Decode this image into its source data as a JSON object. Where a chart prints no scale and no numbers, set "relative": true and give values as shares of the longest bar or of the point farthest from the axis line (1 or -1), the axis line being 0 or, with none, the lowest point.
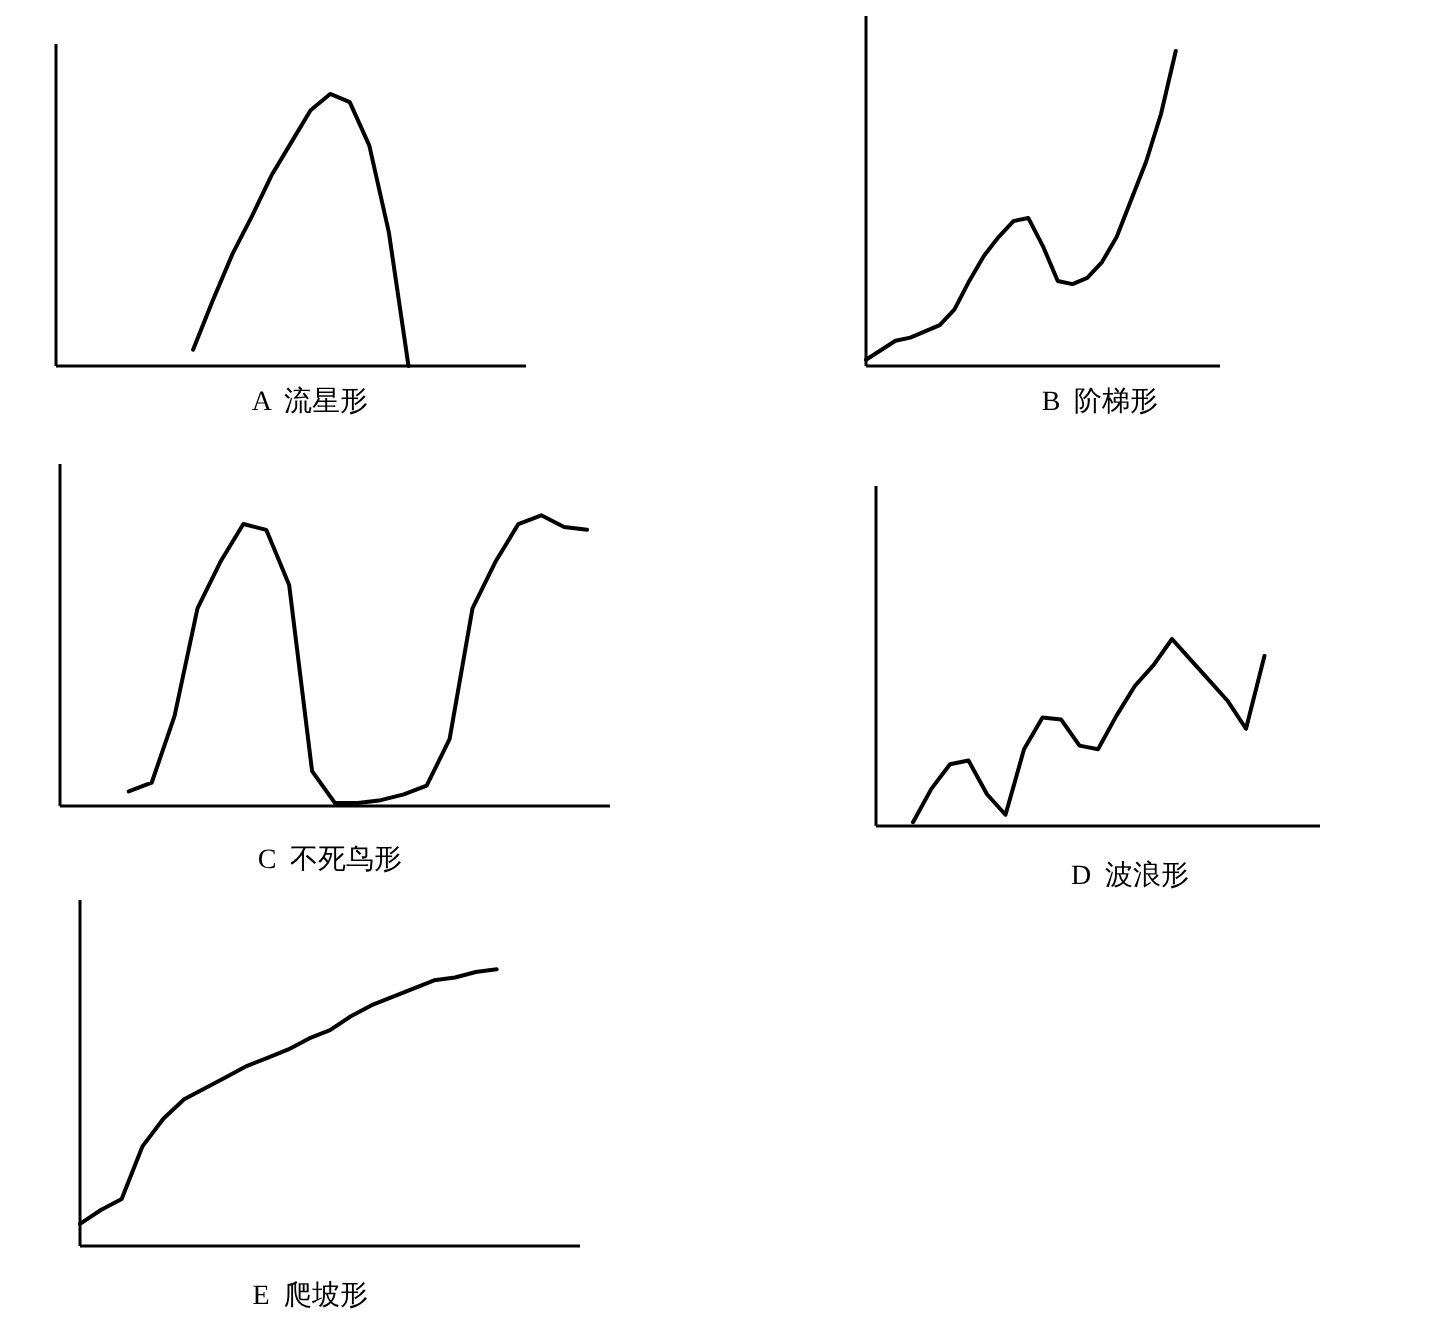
{
  "chart_data": [
    {
      "type": "line",
      "title": "A  流星形",
      "relative": true,
      "color": "#000000",
      "categories": [
        null,
        null,
        null,
        null,
        null,
        null,
        null,
        null,
        null,
        null,
        null,
        null,
        null,
        null,
        null,
        null,
        null,
        null,
        null,
        null,
        null,
        null,
        null,
        null,
        null
      ],
      "values": [
        null,
        null,
        null,
        null,
        null,
        null,
        null,
        0.06,
        0.24,
        0.41,
        0.55,
        0.7,
        0.82,
        0.94,
        1,
        0.97,
        0.81,
        0.49,
        0,
        null,
        null,
        null,
        null,
        null,
        null
      ]
    },
    {
      "type": "line",
      "title": "B  阶梯形",
      "relative": true,
      "color": "#000000",
      "categories": [
        null,
        null,
        null,
        null,
        null,
        null,
        null,
        null,
        null,
        null,
        null,
        null,
        null,
        null,
        null,
        null,
        null,
        null,
        null,
        null,
        null,
        null,
        null,
        null,
        null
      ],
      "values": [
        0.02,
        0.05,
        0.08,
        0.09,
        0.11,
        0.13,
        0.18,
        0.27,
        0.35,
        0.41,
        0.46,
        0.47,
        0.38,
        0.27,
        0.26,
        0.28,
        0.33,
        0.41,
        0.53,
        0.65,
        0.8,
        1,
        null,
        null,
        null
      ]
    },
    {
      "type": "line",
      "title": "C  不死鸟形",
      "relative": true,
      "color": "#000000",
      "categories": [
        null,
        null,
        null,
        null,
        null,
        null,
        null,
        null,
        null,
        null,
        null,
        null,
        null,
        null,
        null,
        null,
        null,
        null,
        null,
        null,
        null,
        null,
        null,
        null,
        null
      ],
      "values": [
        null,
        null,
        null,
        0.05,
        0.08,
        0.31,
        0.68,
        0.84,
        0.97,
        0.95,
        0.76,
        0.12,
        0.01,
        0.01,
        0.02,
        0.04,
        0.07,
        0.23,
        0.68,
        0.84,
        0.97,
        1,
        0.96,
        0.95,
        null
      ]
    },
    {
      "type": "line",
      "title": "D  波浪形",
      "relative": true,
      "color": "#000000",
      "categories": [
        null,
        null,
        null,
        null,
        null,
        null,
        null,
        null,
        null,
        null,
        null,
        null,
        null,
        null,
        null,
        null,
        null,
        null,
        null,
        null,
        null,
        null,
        null,
        null,
        null
      ],
      "values": [
        null,
        null,
        0.02,
        0.2,
        0.33,
        0.35,
        0.17,
        0.06,
        0.41,
        0.58,
        0.57,
        0.43,
        0.41,
        0.59,
        0.75,
        0.86,
        1,
        0.89,
        0.78,
        0.67,
        0.52,
        0.91,
        null,
        null,
        null
      ]
    },
    {
      "type": "line",
      "title": "E  爬坡形",
      "relative": true,
      "color": "#000000",
      "categories": [
        null,
        null,
        null,
        null,
        null,
        null,
        null,
        null,
        null,
        null,
        null,
        null,
        null,
        null,
        null,
        null,
        null,
        null,
        null,
        null,
        null,
        null,
        null,
        null,
        null
      ],
      "values": [
        0.08,
        0.13,
        0.17,
        0.36,
        0.46,
        0.53,
        0.57,
        0.61,
        0.65,
        0.68,
        0.71,
        0.75,
        0.78,
        0.83,
        0.87,
        0.9,
        0.93,
        0.96,
        0.97,
        0.99,
        1,
        null,
        null,
        null,
        null
      ]
    }
  ]
}
